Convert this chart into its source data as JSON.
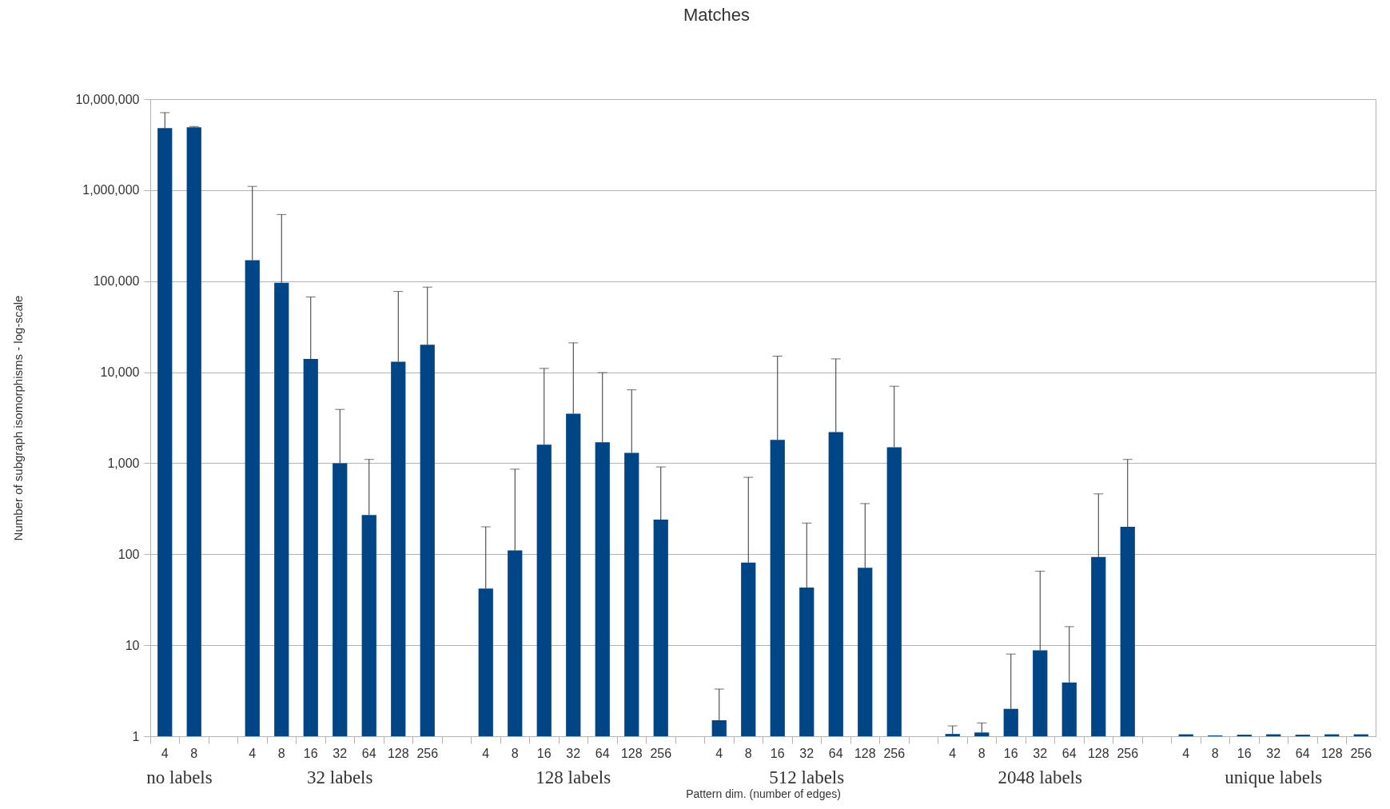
{
  "chart_data": {
    "type": "bar",
    "title": "Matches",
    "xlabel": "Pattern dim. (number of edges)",
    "ylabel": "Number of subgraph isomorphisms - log-scale",
    "categories": [
      "4",
      "8",
      null,
      "4",
      "8",
      "16",
      "32",
      "64",
      "128",
      "256",
      null,
      "4",
      "8",
      "16",
      "32",
      "64",
      "128",
      "256",
      null,
      "4",
      "8",
      "16",
      "32",
      "64",
      "128",
      "256",
      null,
      "4",
      "8",
      "16",
      "32",
      "64",
      "128",
      "256",
      null,
      "4",
      "8",
      "16",
      "32",
      "64",
      "128",
      "256"
    ],
    "values": [
      4800000,
      4900000,
      null,
      170000,
      96000,
      14000,
      1000,
      270,
      13000,
      20000,
      null,
      42,
      110,
      1600,
      3500,
      1700,
      1300,
      240,
      null,
      1.5,
      81,
      1800,
      43,
      2200,
      71,
      1500,
      null,
      1.06,
      1.1,
      2,
      8.8,
      3.9,
      93,
      200,
      null,
      1.05,
      1.02,
      1.04,
      1.05,
      1.04,
      1.05,
      1.05
    ],
    "errors": [
      [
        4800000,
        7100000
      ],
      [
        4900000,
        5000000
      ],
      null,
      [
        170000,
        1100000
      ],
      [
        96000,
        540000
      ],
      [
        14000,
        67000
      ],
      [
        1000,
        3900
      ],
      [
        270,
        1100
      ],
      [
        13000,
        77000
      ],
      [
        20000,
        86000
      ],
      null,
      [
        42,
        200
      ],
      [
        110,
        860
      ],
      [
        1600,
        11000
      ],
      [
        3500,
        21000
      ],
      [
        1700,
        9900
      ],
      [
        1300,
        6400
      ],
      [
        240,
        910
      ],
      null,
      [
        1.5,
        3.3
      ],
      [
        81,
        700
      ],
      [
        1800,
        15000
      ],
      [
        43,
        220
      ],
      [
        2200,
        14000
      ],
      [
        71,
        360
      ],
      [
        1500,
        7000
      ],
      null,
      [
        1.06,
        1.3
      ],
      [
        1.1,
        1.4
      ],
      [
        2,
        8
      ],
      [
        8.8,
        65
      ],
      [
        3.9,
        16
      ],
      [
        93,
        460
      ],
      [
        200,
        1100
      ],
      null,
      null,
      null,
      null,
      null,
      null,
      null,
      null
    ],
    "color": "#004586",
    "ylim": [
      1,
      10000000
    ],
    "yticks": [
      1,
      10,
      100,
      {
        "value": 1000,
        "label": "1,000"
      },
      {
        "value": 10000,
        "label": "10,000"
      },
      {
        "value": 100000,
        "label": "100,000"
      },
      {
        "value": 1000000,
        "label": "1,000,000"
      },
      {
        "value": 10000000,
        "label": "10,000,000"
      }
    ],
    "log": true,
    "grid": "y",
    "annotations": [
      "no labels",
      "32 labels",
      "128 labels",
      "512 labels",
      "2048 labels",
      "unique labels"
    ]
  }
}
